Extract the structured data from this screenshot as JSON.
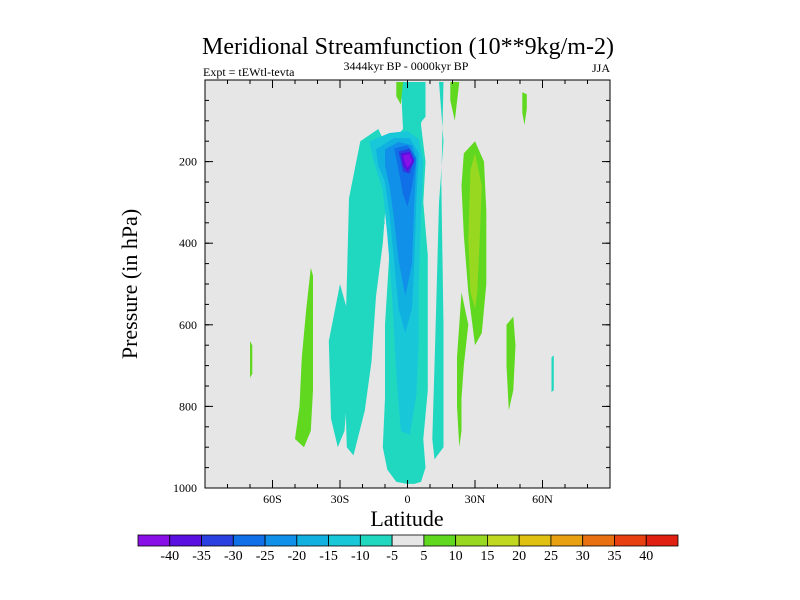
{
  "chart_data": {
    "type": "contour",
    "title": "Meridional Streamfunction (10**9kg/m-2)",
    "subtitle": "3444kyr BP - 0000kyr BP",
    "left_label": "Expt = tEWtl-tevta",
    "right_label": "JJA",
    "xlabel": "Latitude",
    "ylabel": "Pressure (in hPa)",
    "xlim": [
      -90,
      90
    ],
    "ylim": [
      1000,
      0
    ],
    "x_ticks": [
      {
        "value": -60,
        "label": "60S"
      },
      {
        "value": -30,
        "label": "30S"
      },
      {
        "value": 0,
        "label": "0"
      },
      {
        "value": 30,
        "label": "30N"
      },
      {
        "value": 60,
        "label": "60N"
      }
    ],
    "y_ticks": [
      {
        "value": 200,
        "label": "200"
      },
      {
        "value": 400,
        "label": "400"
      },
      {
        "value": 600,
        "label": "600"
      },
      {
        "value": 800,
        "label": "800"
      },
      {
        "value": 1000,
        "label": "1000"
      }
    ],
    "background_fill": "#e6e6e6",
    "colorbar": {
      "levels": [
        "-40",
        "-35",
        "-30",
        "-25",
        "-20",
        "-15",
        "-10",
        "-5",
        "5",
        "10",
        "15",
        "20",
        "25",
        "30",
        "35",
        "40"
      ],
      "colors": [
        "#8a10e8",
        "#5a10e0",
        "#2a40e0",
        "#1070e8",
        "#1090e8",
        "#10b0e0",
        "#18c8d8",
        "#20d8c0",
        "#e6e6e6",
        "#60d820",
        "#98d820",
        "#c0d820",
        "#e0c010",
        "#e8a010",
        "#e87010",
        "#e84010",
        "#e02010"
      ]
    },
    "regions": [
      {
        "level": -5,
        "color": "#20d8c0",
        "points": [
          [
            -21,
            5
          ],
          [
            -3,
            5
          ],
          [
            -2,
            120
          ],
          [
            -8,
            160
          ],
          [
            -10,
            230
          ],
          [
            -8,
            420
          ],
          [
            -10,
            600
          ],
          [
            -10,
            780
          ],
          [
            -11,
            900
          ],
          [
            -9,
            955
          ],
          [
            -5,
            985
          ],
          [
            0,
            990
          ],
          [
            3,
            990
          ],
          [
            6,
            985
          ],
          [
            8,
            950
          ],
          [
            7,
            880
          ],
          [
            9,
            760
          ],
          [
            9,
            580
          ],
          [
            9,
            430
          ],
          [
            7,
            300
          ],
          [
            8,
            200
          ],
          [
            6,
            110
          ],
          [
            8,
            5
          ],
          [
            14,
            5
          ],
          [
            16,
            150
          ],
          [
            14,
            300
          ],
          [
            13,
            500
          ],
          [
            12,
            700
          ],
          [
            11,
            880
          ],
          [
            12,
            930
          ],
          [
            16,
            900
          ],
          [
            16,
            600
          ],
          [
            15,
            250
          ],
          [
            16,
            5
          ]
        ]
      },
      {
        "level": -5,
        "color": "#20d8c0",
        "points": [
          [
            -3,
            5
          ],
          [
            8,
            5
          ],
          [
            8,
            90
          ],
          [
            5,
            110
          ],
          [
            2,
            100
          ],
          [
            -1,
            90
          ]
        ]
      },
      {
        "level": -5,
        "color": "#20d8c0",
        "points": [
          [
            -26,
            290
          ],
          [
            -21,
            150
          ],
          [
            -13,
            120
          ],
          [
            -8,
            180
          ],
          [
            -11,
            400
          ],
          [
            -14,
            530
          ],
          [
            -16,
            690
          ],
          [
            -19,
            810
          ],
          [
            -24,
            920
          ],
          [
            -27,
            900
          ],
          [
            -28,
            700
          ],
          [
            -27,
            500
          ]
        ]
      },
      {
        "level": -5,
        "color": "#20d8c0",
        "points": [
          [
            -35,
            640
          ],
          [
            -30,
            500
          ],
          [
            -27,
            560
          ],
          [
            -26,
            720
          ],
          [
            -28,
            860
          ],
          [
            -31,
            900
          ],
          [
            -34,
            830
          ]
        ]
      },
      {
        "level": -5,
        "color": "#20d8c0",
        "points": [
          [
            -14,
            338
          ],
          [
            -11,
            335
          ],
          [
            -10,
            352
          ],
          [
            -14,
            355
          ]
        ]
      },
      {
        "level": -5,
        "color": "#20d8c0",
        "points": [
          [
            64,
            680
          ],
          [
            65,
            675
          ],
          [
            65,
            760
          ],
          [
            64,
            765
          ]
        ]
      },
      {
        "level": -10,
        "color": "#18c8d8",
        "points": [
          [
            -17,
            150
          ],
          [
            -8,
            130
          ],
          [
            0,
            125
          ],
          [
            5,
            145
          ],
          [
            7,
            200
          ],
          [
            6,
            330
          ],
          [
            5,
            500
          ],
          [
            5,
            640
          ],
          [
            4,
            770
          ],
          [
            1,
            870
          ],
          [
            -3,
            860
          ],
          [
            -5,
            720
          ],
          [
            -7,
            520
          ],
          [
            -9,
            380
          ],
          [
            -11,
            270
          ],
          [
            -15,
            200
          ]
        ]
      },
      {
        "level": -15,
        "color": "#10b0e0",
        "points": [
          [
            -14,
            170
          ],
          [
            -6,
            142
          ],
          [
            1,
            143
          ],
          [
            5,
            180
          ],
          [
            4,
            290
          ],
          [
            3,
            450
          ],
          [
            2,
            560
          ],
          [
            -1,
            620
          ],
          [
            -4,
            560
          ],
          [
            -6,
            440
          ],
          [
            -8,
            330
          ],
          [
            -10,
            250
          ],
          [
            -13,
            210
          ]
        ]
      },
      {
        "level": -20,
        "color": "#1090e8",
        "points": [
          [
            -10,
            170
          ],
          [
            -4,
            152
          ],
          [
            2,
            160
          ],
          [
            4,
            200
          ],
          [
            3,
            300
          ],
          [
            2,
            450
          ],
          [
            -1,
            530
          ],
          [
            -4,
            440
          ],
          [
            -6,
            340
          ],
          [
            -8,
            260
          ],
          [
            -10,
            210
          ]
        ]
      },
      {
        "level": -25,
        "color": "#1070e8",
        "points": [
          [
            -6,
            168
          ],
          [
            0,
            160
          ],
          [
            4,
            192
          ],
          [
            2,
            260
          ],
          [
            0,
            310
          ],
          [
            -2,
            280
          ],
          [
            -4,
            220
          ]
        ]
      },
      {
        "level": -30,
        "color": "#2a40e0",
        "points": [
          [
            -4,
            175
          ],
          [
            1,
            168
          ],
          [
            3,
            195
          ],
          [
            1,
            230
          ],
          [
            -2,
            225
          ],
          [
            -3,
            200
          ]
        ]
      },
      {
        "level": -35,
        "color": "#5a10e0",
        "points": [
          [
            -3,
            180
          ],
          [
            1,
            176
          ],
          [
            3,
            200
          ],
          [
            0,
            225
          ],
          [
            -2,
            210
          ]
        ]
      },
      {
        "level": -40,
        "color": "#8a10e8",
        "points": [
          [
            -2,
            185
          ],
          [
            1,
            182
          ],
          [
            2,
            200
          ],
          [
            0,
            215
          ],
          [
            -1,
            205
          ]
        ]
      },
      {
        "level": 10,
        "color": "#60d820",
        "points": [
          [
            -5,
            5
          ],
          [
            -2,
            5
          ],
          [
            -3,
            60
          ],
          [
            -5,
            40
          ]
        ]
      },
      {
        "level": 10,
        "color": "#60d820",
        "points": [
          [
            19,
            5
          ],
          [
            23,
            5
          ],
          [
            21,
            100
          ],
          [
            19,
            50
          ]
        ]
      },
      {
        "level": 10,
        "color": "#60d820",
        "points": [
          [
            25,
            180
          ],
          [
            30,
            150
          ],
          [
            34,
            200
          ],
          [
            35,
            320
          ],
          [
            35,
            500
          ],
          [
            33,
            620
          ],
          [
            30,
            650
          ],
          [
            27,
            520
          ],
          [
            25,
            380
          ],
          [
            24,
            260
          ]
        ]
      },
      {
        "level": 10,
        "color": "#60d820",
        "points": [
          [
            24,
            520
          ],
          [
            27,
            600
          ],
          [
            25,
            700
          ],
          [
            24,
            780
          ],
          [
            24,
            860
          ],
          [
            23,
            900
          ],
          [
            22,
            800
          ],
          [
            22,
            680
          ]
        ]
      },
      {
        "level": 10,
        "color": "#60d820",
        "points": [
          [
            -50,
            880
          ],
          [
            -48,
            800
          ],
          [
            -47,
            680
          ],
          [
            -45,
            560
          ],
          [
            -43,
            460
          ],
          [
            -42,
            480
          ],
          [
            -42,
            640
          ],
          [
            -42,
            760
          ],
          [
            -43,
            860
          ],
          [
            -46,
            900
          ]
        ]
      },
      {
        "level": 10,
        "color": "#60d820",
        "points": [
          [
            -70,
            660
          ],
          [
            -70,
            640
          ],
          [
            -69,
            650
          ],
          [
            -69,
            720
          ],
          [
            -70,
            730
          ]
        ]
      },
      {
        "level": 10,
        "color": "#60d820",
        "points": [
          [
            44,
            600
          ],
          [
            47,
            580
          ],
          [
            48,
            650
          ],
          [
            47,
            760
          ],
          [
            45,
            810
          ],
          [
            44,
            700
          ]
        ]
      },
      {
        "level": 10,
        "color": "#60d820",
        "points": [
          [
            51,
            30
          ],
          [
            53,
            35
          ],
          [
            53,
            70
          ],
          [
            52,
            110
          ],
          [
            51,
            80
          ]
        ]
      },
      {
        "level": 15,
        "color": "#98d820",
        "points": [
          [
            28,
            220
          ],
          [
            30,
            180
          ],
          [
            33,
            260
          ],
          [
            32,
            400
          ],
          [
            31,
            520
          ],
          [
            30,
            560
          ],
          [
            28,
            520
          ],
          [
            27,
            390
          ]
        ]
      }
    ]
  }
}
